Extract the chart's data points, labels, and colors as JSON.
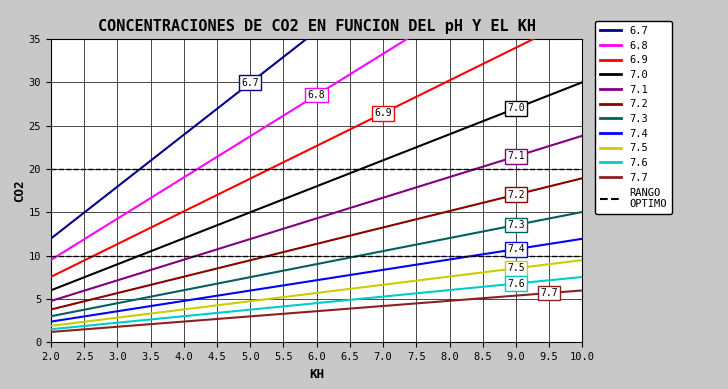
{
  "title": "CONCENTRACIONES DE CO2 EN FUNCION DEL pH Y EL KH",
  "xlabel": "KH",
  "ylabel": "CO2",
  "xlim": [
    2.0,
    10.0
  ],
  "ylim": [
    0,
    35
  ],
  "ph_values": [
    6.7,
    6.8,
    6.9,
    7.0,
    7.1,
    7.2,
    7.3,
    7.4,
    7.5,
    7.6,
    7.7
  ],
  "line_colors": {
    "6.7": "#00008B",
    "6.8": "#FF00FF",
    "6.9": "#FF0000",
    "7.0": "#000000",
    "7.1": "#800080",
    "7.2": "#8B0000",
    "7.3": "#006060",
    "7.4": "#0000FF",
    "7.5": "#CCCC00",
    "7.6": "#00CCCC",
    "7.7": "#8B2020"
  },
  "label_x": {
    "6.7": 5.0,
    "6.8": 6.0,
    "6.9": 7.0,
    "7.0": 9.0,
    "7.1": 9.0,
    "7.2": 9.0,
    "7.3": 9.0,
    "7.4": 9.0,
    "7.5": 9.0,
    "7.6": 9.0,
    "7.7": 9.5
  },
  "optimo_lower": 10.0,
  "optimo_upper": 20.0,
  "xticks": [
    2.0,
    2.5,
    3.0,
    3.5,
    4.0,
    4.5,
    5.0,
    5.5,
    6.0,
    6.5,
    7.0,
    7.5,
    8.0,
    8.5,
    9.0,
    9.5,
    10.0
  ],
  "yticks": [
    0,
    5,
    10,
    15,
    20,
    25,
    30,
    35
  ],
  "bg_color": "#C8C8C8",
  "plot_bg_color": "#FFFFFF",
  "title_fontsize": 11,
  "axis_label_fontsize": 9
}
